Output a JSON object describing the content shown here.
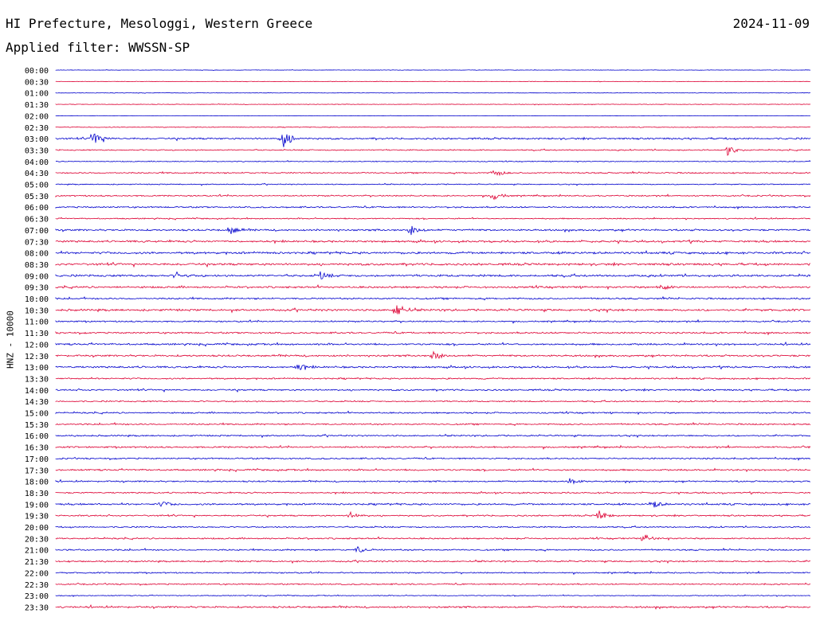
{
  "header": {
    "title": "HI Prefecture, Mesologgi, Western Greece",
    "date": "2024-11-09",
    "filter": "Applied filter: WWSSN-SP"
  },
  "colors": {
    "even": "#0000cc",
    "odd": "#dd0033"
  },
  "chart_data": {
    "type": "line",
    "title": "HI Prefecture, Mesologgi, Western Greece",
    "ylabel": "HNZ - 10000",
    "xlabel": "",
    "rows": [
      "00:00",
      "00:30",
      "01:00",
      "01:30",
      "02:00",
      "02:30",
      "03:00",
      "03:30",
      "04:00",
      "04:30",
      "05:00",
      "05:30",
      "06:00",
      "06:30",
      "07:00",
      "07:30",
      "08:00",
      "08:30",
      "09:00",
      "09:30",
      "10:00",
      "10:30",
      "11:00",
      "11:30",
      "12:00",
      "12:30",
      "13:00",
      "13:30",
      "14:00",
      "14:30",
      "15:00",
      "15:30",
      "16:00",
      "16:30",
      "17:00",
      "17:30",
      "18:00",
      "18:30",
      "19:00",
      "19:30",
      "20:00",
      "20:30",
      "21:00",
      "21:30",
      "22:00",
      "22:30",
      "23:00",
      "23:30"
    ],
    "noise_level": [
      0.3,
      0.3,
      0.3,
      0.4,
      0.2,
      0.5,
      1.2,
      0.8,
      0.6,
      0.9,
      0.7,
      0.9,
      1.0,
      0.8,
      1.2,
      1.3,
      1.5,
      1.5,
      1.4,
      1.3,
      1.1,
      1.4,
      1.0,
      1.1,
      1.2,
      1.2,
      1.2,
      1.0,
      1.1,
      0.9,
      1.0,
      1.0,
      1.0,
      1.1,
      1.0,
      1.1,
      1.0,
      0.9,
      1.2,
      1.0,
      0.9,
      1.0,
      1.0,
      1.0,
      0.9,
      0.9,
      0.6,
      1.2
    ],
    "events": [
      {
        "row": "03:00",
        "position": 0.05,
        "amplitude": 10
      },
      {
        "row": "03:00",
        "position": 0.3,
        "amplitude": 14
      },
      {
        "row": "03:30",
        "position": 0.89,
        "amplitude": 8
      },
      {
        "row": "04:30",
        "position": 0.58,
        "amplitude": 6
      },
      {
        "row": "05:30",
        "position": 0.58,
        "amplitude": 6
      },
      {
        "row": "07:00",
        "position": 0.23,
        "amplitude": 6
      },
      {
        "row": "07:00",
        "position": 0.47,
        "amplitude": 6
      },
      {
        "row": "09:00",
        "position": 0.16,
        "amplitude": 4
      },
      {
        "row": "09:00",
        "position": 0.35,
        "amplitude": 5
      },
      {
        "row": "09:30",
        "position": 0.8,
        "amplitude": 5
      },
      {
        "row": "10:30",
        "position": 0.45,
        "amplitude": 11
      },
      {
        "row": "12:30",
        "position": 0.5,
        "amplitude": 6
      },
      {
        "row": "13:00",
        "position": 0.32,
        "amplitude": 5
      },
      {
        "row": "18:00",
        "position": 0.68,
        "amplitude": 5
      },
      {
        "row": "19:00",
        "position": 0.14,
        "amplitude": 4
      },
      {
        "row": "19:00",
        "position": 0.79,
        "amplitude": 5
      },
      {
        "row": "19:30",
        "position": 0.39,
        "amplitude": 5
      },
      {
        "row": "19:30",
        "position": 0.72,
        "amplitude": 6
      },
      {
        "row": "20:30",
        "position": 0.78,
        "amplitude": 5
      },
      {
        "row": "21:00",
        "position": 0.4,
        "amplitude": 4
      }
    ]
  }
}
